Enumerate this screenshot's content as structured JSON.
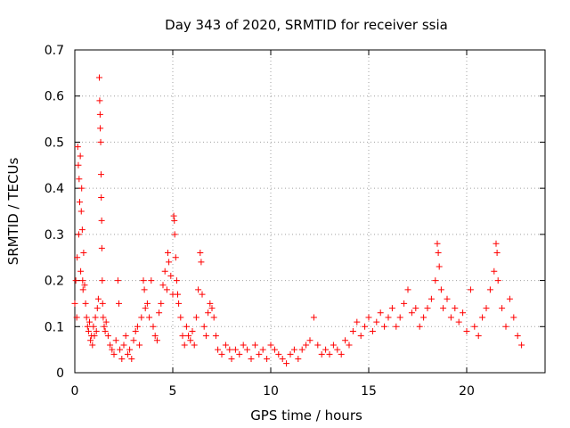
{
  "chart_data": {
    "type": "scatter",
    "title": "Day 343 of 2020, SRMTID for receiver ssia",
    "xlabel": "GPS time / hours",
    "ylabel": "SRMTID / TECUs",
    "xlim": [
      0,
      24
    ],
    "ylim": [
      0,
      0.7
    ],
    "xticks": [
      0,
      5,
      10,
      15,
      20
    ],
    "yticks": [
      0,
      0.1,
      0.2,
      0.3,
      0.4,
      0.5,
      0.6,
      0.7
    ],
    "ytick_labels": [
      "0",
      "0.1",
      "0.2",
      "0.3",
      "0.4",
      "0.5",
      "0.6",
      "0.7"
    ],
    "grid": true,
    "series": [
      {
        "name": "SRMTID",
        "color": "#ff0000",
        "marker": "plus",
        "points": [
          [
            0.0,
            0.15
          ],
          [
            0.05,
            0.2
          ],
          [
            0.1,
            0.12
          ],
          [
            0.12,
            0.25
          ],
          [
            0.15,
            0.49
          ],
          [
            0.18,
            0.45
          ],
          [
            0.2,
            0.3
          ],
          [
            0.22,
            0.42
          ],
          [
            0.25,
            0.37
          ],
          [
            0.28,
            0.47
          ],
          [
            0.3,
            0.22
          ],
          [
            0.33,
            0.35
          ],
          [
            0.35,
            0.4
          ],
          [
            0.38,
            0.31
          ],
          [
            0.4,
            0.2
          ],
          [
            0.42,
            0.18
          ],
          [
            0.45,
            0.26
          ],
          [
            0.5,
            0.19
          ],
          [
            0.55,
            0.15
          ],
          [
            0.6,
            0.12
          ],
          [
            0.65,
            0.1
          ],
          [
            0.7,
            0.09
          ],
          [
            0.75,
            0.11
          ],
          [
            0.8,
            0.07
          ],
          [
            0.85,
            0.08
          ],
          [
            0.9,
            0.06
          ],
          [
            0.95,
            0.1
          ],
          [
            1.0,
            0.08
          ],
          [
            1.05,
            0.12
          ],
          [
            1.1,
            0.09
          ],
          [
            1.15,
            0.14
          ],
          [
            1.2,
            0.16
          ],
          [
            1.25,
            0.64
          ],
          [
            1.27,
            0.59
          ],
          [
            1.29,
            0.56
          ],
          [
            1.3,
            0.53
          ],
          [
            1.32,
            0.5
          ],
          [
            1.34,
            0.43
          ],
          [
            1.35,
            0.38
          ],
          [
            1.37,
            0.33
          ],
          [
            1.38,
            0.27
          ],
          [
            1.4,
            0.2
          ],
          [
            1.42,
            0.15
          ],
          [
            1.45,
            0.12
          ],
          [
            1.5,
            0.1
          ],
          [
            1.55,
            0.09
          ],
          [
            1.6,
            0.11
          ],
          [
            1.7,
            0.08
          ],
          [
            1.8,
            0.06
          ],
          [
            1.9,
            0.05
          ],
          [
            2.0,
            0.04
          ],
          [
            2.1,
            0.07
          ],
          [
            2.2,
            0.2
          ],
          [
            2.25,
            0.15
          ],
          [
            2.3,
            0.05
          ],
          [
            2.4,
            0.03
          ],
          [
            2.5,
            0.06
          ],
          [
            2.6,
            0.08
          ],
          [
            2.7,
            0.04
          ],
          [
            2.8,
            0.05
          ],
          [
            2.9,
            0.03
          ],
          [
            3.0,
            0.07
          ],
          [
            3.1,
            0.09
          ],
          [
            3.2,
            0.1
          ],
          [
            3.3,
            0.06
          ],
          [
            3.4,
            0.12
          ],
          [
            3.5,
            0.2
          ],
          [
            3.55,
            0.18
          ],
          [
            3.6,
            0.14
          ],
          [
            3.7,
            0.15
          ],
          [
            3.8,
            0.12
          ],
          [
            3.9,
            0.2
          ],
          [
            4.0,
            0.1
          ],
          [
            4.1,
            0.08
          ],
          [
            4.2,
            0.07
          ],
          [
            4.3,
            0.13
          ],
          [
            4.4,
            0.15
          ],
          [
            4.5,
            0.19
          ],
          [
            4.6,
            0.22
          ],
          [
            4.7,
            0.18
          ],
          [
            4.75,
            0.26
          ],
          [
            4.8,
            0.24
          ],
          [
            4.9,
            0.21
          ],
          [
            5.0,
            0.17
          ],
          [
            5.05,
            0.34
          ],
          [
            5.08,
            0.33
          ],
          [
            5.1,
            0.3
          ],
          [
            5.15,
            0.25
          ],
          [
            5.2,
            0.2
          ],
          [
            5.25,
            0.17
          ],
          [
            5.3,
            0.15
          ],
          [
            5.4,
            0.12
          ],
          [
            5.5,
            0.08
          ],
          [
            5.6,
            0.06
          ],
          [
            5.7,
            0.1
          ],
          [
            5.8,
            0.08
          ],
          [
            5.9,
            0.07
          ],
          [
            6.0,
            0.09
          ],
          [
            6.1,
            0.06
          ],
          [
            6.2,
            0.12
          ],
          [
            6.3,
            0.18
          ],
          [
            6.4,
            0.26
          ],
          [
            6.45,
            0.24
          ],
          [
            6.5,
            0.17
          ],
          [
            6.6,
            0.1
          ],
          [
            6.7,
            0.08
          ],
          [
            6.8,
            0.13
          ],
          [
            6.9,
            0.15
          ],
          [
            7.0,
            0.14
          ],
          [
            7.1,
            0.12
          ],
          [
            7.2,
            0.08
          ],
          [
            7.3,
            0.05
          ],
          [
            7.5,
            0.04
          ],
          [
            7.7,
            0.06
          ],
          [
            7.9,
            0.05
          ],
          [
            8.0,
            0.03
          ],
          [
            8.2,
            0.05
          ],
          [
            8.4,
            0.04
          ],
          [
            8.6,
            0.06
          ],
          [
            8.8,
            0.05
          ],
          [
            9.0,
            0.03
          ],
          [
            9.2,
            0.06
          ],
          [
            9.4,
            0.04
          ],
          [
            9.6,
            0.05
          ],
          [
            9.8,
            0.03
          ],
          [
            10.0,
            0.06
          ],
          [
            10.2,
            0.05
          ],
          [
            10.4,
            0.04
          ],
          [
            10.6,
            0.03
          ],
          [
            10.8,
            0.02
          ],
          [
            11.0,
            0.04
          ],
          [
            11.2,
            0.05
          ],
          [
            11.4,
            0.03
          ],
          [
            11.6,
            0.05
          ],
          [
            11.8,
            0.06
          ],
          [
            12.0,
            0.07
          ],
          [
            12.2,
            0.12
          ],
          [
            12.4,
            0.06
          ],
          [
            12.6,
            0.04
          ],
          [
            12.8,
            0.05
          ],
          [
            13.0,
            0.04
          ],
          [
            13.2,
            0.06
          ],
          [
            13.4,
            0.05
          ],
          [
            13.6,
            0.04
          ],
          [
            13.8,
            0.07
          ],
          [
            14.0,
            0.06
          ],
          [
            14.2,
            0.09
          ],
          [
            14.4,
            0.11
          ],
          [
            14.6,
            0.08
          ],
          [
            14.8,
            0.1
          ],
          [
            15.0,
            0.12
          ],
          [
            15.2,
            0.09
          ],
          [
            15.4,
            0.11
          ],
          [
            15.6,
            0.13
          ],
          [
            15.8,
            0.1
          ],
          [
            16.0,
            0.12
          ],
          [
            16.2,
            0.14
          ],
          [
            16.4,
            0.1
          ],
          [
            16.6,
            0.12
          ],
          [
            16.8,
            0.15
          ],
          [
            17.0,
            0.18
          ],
          [
            17.2,
            0.13
          ],
          [
            17.4,
            0.14
          ],
          [
            17.6,
            0.1
          ],
          [
            17.8,
            0.12
          ],
          [
            18.0,
            0.14
          ],
          [
            18.2,
            0.16
          ],
          [
            18.4,
            0.2
          ],
          [
            18.5,
            0.28
          ],
          [
            18.55,
            0.26
          ],
          [
            18.6,
            0.23
          ],
          [
            18.7,
            0.18
          ],
          [
            18.8,
            0.14
          ],
          [
            19.0,
            0.16
          ],
          [
            19.2,
            0.12
          ],
          [
            19.4,
            0.14
          ],
          [
            19.6,
            0.11
          ],
          [
            19.8,
            0.13
          ],
          [
            20.0,
            0.09
          ],
          [
            20.2,
            0.18
          ],
          [
            20.4,
            0.1
          ],
          [
            20.6,
            0.08
          ],
          [
            20.8,
            0.12
          ],
          [
            21.0,
            0.14
          ],
          [
            21.2,
            0.18
          ],
          [
            21.4,
            0.22
          ],
          [
            21.5,
            0.28
          ],
          [
            21.55,
            0.26
          ],
          [
            21.6,
            0.2
          ],
          [
            21.8,
            0.14
          ],
          [
            22.0,
            0.1
          ],
          [
            22.2,
            0.16
          ],
          [
            22.4,
            0.12
          ],
          [
            22.6,
            0.08
          ],
          [
            22.8,
            0.06
          ]
        ]
      }
    ]
  }
}
